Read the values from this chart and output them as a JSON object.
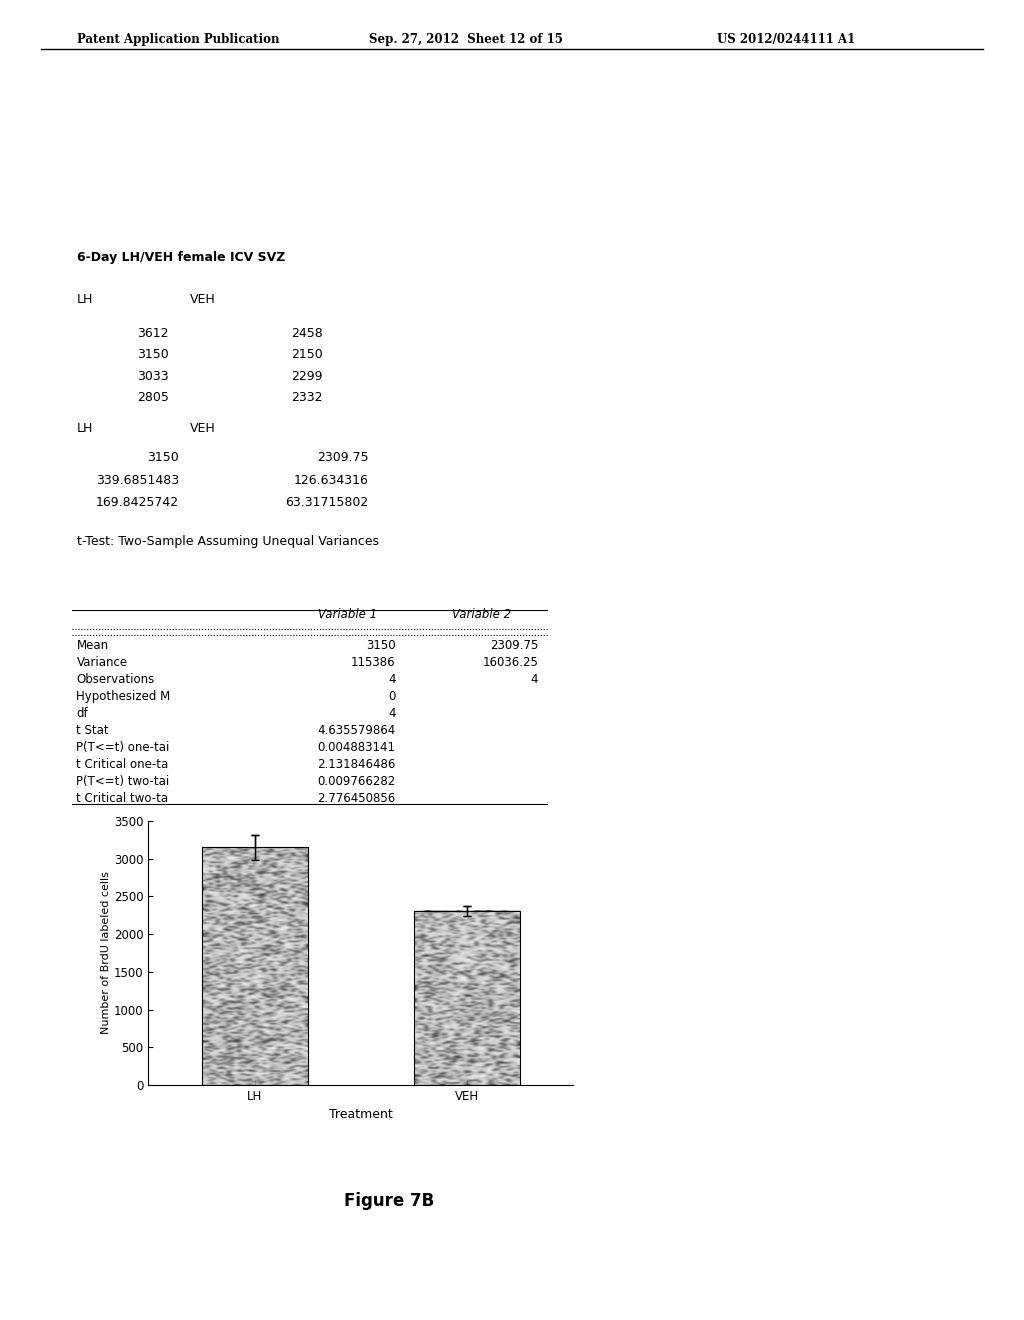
{
  "page_header_left": "Patent Application Publication",
  "page_header_center": "Sep. 27, 2012  Sheet 12 of 15",
  "page_header_right": "US 2012/0244111 A1",
  "section_title": "6-Day LH/VEH female ICV SVZ",
  "raw_data_header": [
    "LH",
    "VEH"
  ],
  "raw_data": [
    [
      3612,
      2458
    ],
    [
      3150,
      2150
    ],
    [
      3033,
      2299
    ],
    [
      2805,
      2332
    ]
  ],
  "summary_header": [
    "LH",
    "VEH"
  ],
  "summary_data": [
    [
      "3150",
      "2309.75"
    ],
    [
      "339.6851483",
      "126.634316"
    ],
    [
      "169.8425742",
      "63.31715802"
    ]
  ],
  "ttest_title": "t-Test: Two-Sample Assuming Unequal Variances",
  "ttest_rows": [
    [
      "Mean",
      "3150",
      "2309.75"
    ],
    [
      "Variance",
      "115386",
      "16036.25"
    ],
    [
      "Observations",
      "4",
      "4"
    ],
    [
      "Hypothesized M",
      "0",
      ""
    ],
    [
      "df",
      "4",
      ""
    ],
    [
      "t Stat",
      "4.635579864",
      ""
    ],
    [
      "P(T<=t) one-tai",
      "0.004883141",
      ""
    ],
    [
      "t Critical one-ta",
      "2.131846486",
      ""
    ],
    [
      "P(T<=t) two-tai",
      "0.009766282",
      ""
    ],
    [
      "t Critical two-ta",
      "2.776450856",
      ""
    ]
  ],
  "bar_categories": [
    "LH",
    "VEH"
  ],
  "bar_values": [
    3150,
    2309.75
  ],
  "bar_errors": [
    169.8425742,
    63.31715802
  ],
  "ylabel": "Number of BrdU labeled cells",
  "xlabel": "Treatment",
  "ylim": [
    0,
    3500
  ],
  "yticks": [
    0,
    500,
    1000,
    1500,
    2000,
    2500,
    3000,
    3500
  ],
  "figure_label": "Figure 7B",
  "background_color": "#ffffff",
  "text_color": "#000000"
}
